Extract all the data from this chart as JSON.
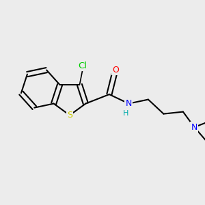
{
  "bg_color": "#ececec",
  "bond_color": "#000000",
  "bond_width": 1.5,
  "font_size": 9,
  "atoms": {
    "S": {
      "color": "#cccc00",
      "label": "S"
    },
    "N": {
      "color": "#0000ff",
      "label": "N"
    },
    "O": {
      "color": "#ff0000",
      "label": "O"
    },
    "Cl": {
      "color": "#00cc00",
      "label": "Cl"
    },
    "H": {
      "color": "#00aaaa",
      "label": "H"
    }
  }
}
